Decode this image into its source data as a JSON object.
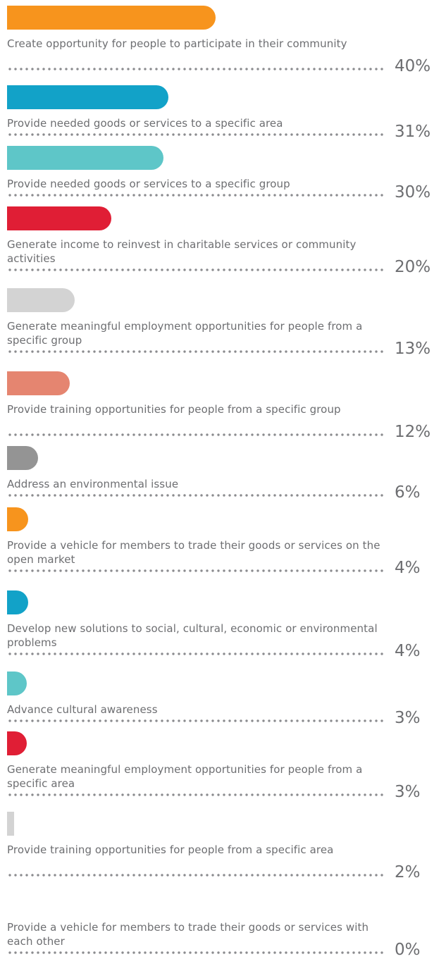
{
  "chart_data": {
    "type": "bar",
    "orientation": "horizontal",
    "xlim": [
      0,
      100
    ],
    "categories": [
      "Create opportunity for people to participate in their community",
      "Provide needed goods or services to a specific area",
      "Provide needed goods or services to a specific group",
      "Generate income to reinvest in charitable services or community activities",
      "Generate meaningful employment opportunities for people from a specific group",
      "Provide training opportunities for people from a specific group",
      "Address an environmental issue",
      "Provide a vehicle for members to trade their goods or services on the open market",
      "Develop new solutions to social, cultural, economic or environmental problems",
      "Advance cultural awareness",
      "Generate meaningful employment opportunities for people from a specific area",
      "Provide training opportunities for people from a specific area",
      "Provide a vehicle for members to trade their goods or services with each other"
    ],
    "values": [
      40,
      31,
      30,
      20,
      13,
      12,
      6,
      4,
      4,
      3,
      3,
      2,
      0
    ],
    "value_labels": [
      "40%",
      "31%",
      "30%",
      "20%",
      "13%",
      "12%",
      "6%",
      "4%",
      "4%",
      "3%",
      "3%",
      "2%",
      "0%"
    ],
    "colors": [
      "#f7941d",
      "#12a2c8",
      "#5ec6c8",
      "#e01e35",
      "#d3d3d3",
      "#e58570",
      "#949494",
      "#f7941d",
      "#12a2c8",
      "#5ec6c8",
      "#e01e35",
      "#d3d3d3",
      "#d3d3d3"
    ]
  }
}
